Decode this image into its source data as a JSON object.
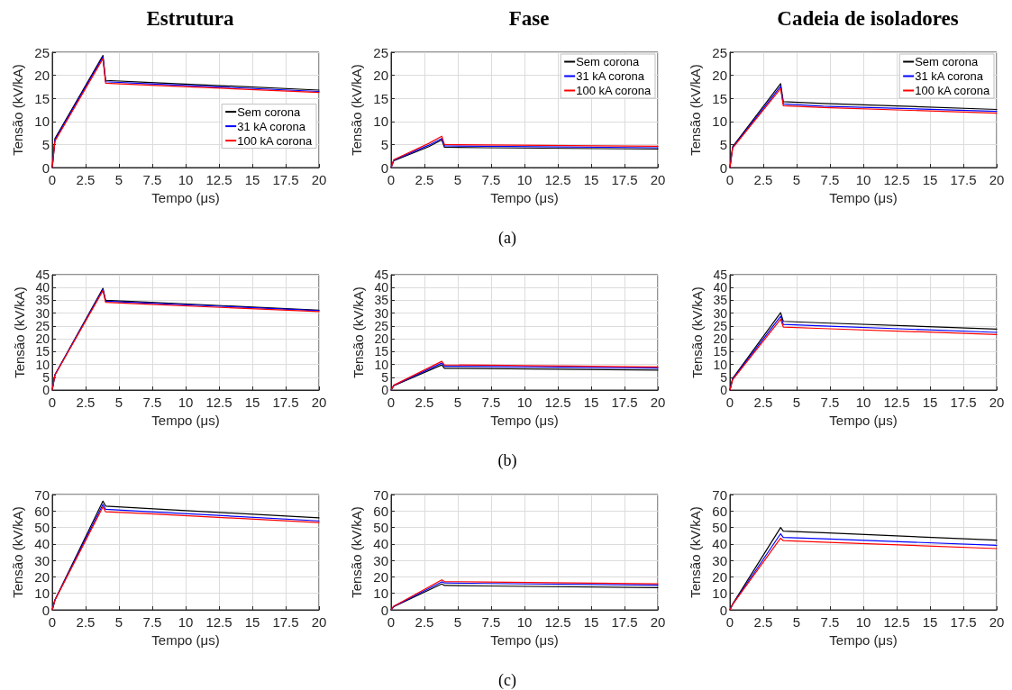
{
  "chart_data": [
    {
      "type": "line",
      "title": "Estrutura",
      "xlabel": "Tempo (μs)",
      "ylabel": "Tensão (kV/kA)",
      "xlim": [
        0,
        20
      ],
      "xticks": [
        0,
        2.5,
        5,
        7.5,
        10,
        12.5,
        15,
        17.5,
        20
      ],
      "ylim": [
        0,
        25
      ],
      "yticks": [
        0,
        5,
        10,
        15,
        20,
        25
      ],
      "grid": true,
      "legend": "right",
      "x": [
        0,
        0.2,
        3.8,
        4,
        7,
        20
      ],
      "series": [
        {
          "name": "Sem corona",
          "color": "#000000",
          "values": [
            0,
            6.3,
            24.3,
            18.9,
            18.5,
            16.8
          ]
        },
        {
          "name": "31 kA corona",
          "color": "#0000ff",
          "values": [
            0,
            6,
            24,
            18.6,
            18.2,
            16.5
          ]
        },
        {
          "name": "100 kA corona",
          "color": "#ff0000",
          "values": [
            0,
            5.7,
            23.6,
            18.3,
            17.9,
            16.3
          ]
        }
      ]
    },
    {
      "type": "line",
      "title": "Fase",
      "xlabel": "Tempo (μs)",
      "ylabel": "Tensão (kV/kA)",
      "annotations": [
        "(a)"
      ],
      "xlim": [
        0,
        20
      ],
      "xticks": [
        0,
        2.5,
        5,
        7.5,
        10,
        12.5,
        15,
        17.5,
        20
      ],
      "ylim": [
        0,
        25
      ],
      "yticks": [
        0,
        5,
        10,
        15,
        20,
        25
      ],
      "grid": true,
      "legend": "top right",
      "x": [
        0,
        0.2,
        2.8,
        3.8,
        4,
        7,
        20
      ],
      "series": [
        {
          "name": "Sem corona",
          "color": "#000000",
          "values": [
            0,
            1.5,
            4.5,
            6,
            4.4,
            4.3,
            4
          ]
        },
        {
          "name": "31 kA corona",
          "color": "#0000ff",
          "values": [
            0,
            1.6,
            4.8,
            6.3,
            4.7,
            4.6,
            4.3
          ]
        },
        {
          "name": "100 kA corona",
          "color": "#ff0000",
          "values": [
            0,
            1.7,
            5.2,
            6.8,
            5,
            4.9,
            4.6
          ]
        }
      ]
    },
    {
      "type": "line",
      "title": "Cadeia de isoladores",
      "xlabel": "Tempo (μs)",
      "ylabel": "Tensão (kV/kA)",
      "xlim": [
        0,
        20
      ],
      "xticks": [
        0,
        2.5,
        5,
        7.5,
        10,
        12.5,
        15,
        17.5,
        20
      ],
      "ylim": [
        0,
        25
      ],
      "yticks": [
        0,
        5,
        10,
        15,
        20,
        25
      ],
      "grid": true,
      "legend": "top right",
      "x": [
        0,
        0.2,
        3.8,
        4,
        7,
        20
      ],
      "series": [
        {
          "name": "Sem corona",
          "color": "#000000",
          "values": [
            0,
            4.5,
            18.2,
            14.3,
            13.9,
            12.6
          ]
        },
        {
          "name": "31 kA corona",
          "color": "#0000ff",
          "values": [
            0,
            4.3,
            17.6,
            13.8,
            13.3,
            12.2
          ]
        },
        {
          "name": "100 kA corona",
          "color": "#ff0000",
          "values": [
            0,
            4.2,
            17.1,
            13.4,
            13,
            11.8
          ]
        }
      ]
    },
    {
      "type": "line",
      "xlabel": "Tempo (μs)",
      "ylabel": "Tensão (kV/kA)",
      "xlim": [
        0,
        20
      ],
      "xticks": [
        0,
        2.5,
        5,
        7.5,
        10,
        12.5,
        15,
        17.5,
        20
      ],
      "ylim": [
        0,
        45
      ],
      "yticks": [
        0,
        5,
        10,
        15,
        20,
        25,
        30,
        35,
        40,
        45
      ],
      "grid": true,
      "x": [
        0,
        0.2,
        3.8,
        4,
        7,
        20
      ],
      "series": [
        {
          "color": "#000000",
          "values": [
            0,
            6,
            39.7,
            35,
            34.3,
            31.2
          ]
        },
        {
          "color": "#0000ff",
          "values": [
            0,
            6,
            39.3,
            34.7,
            34,
            31
          ]
        },
        {
          "color": "#ff0000",
          "values": [
            0,
            5.8,
            38.8,
            34.2,
            33.5,
            30.6
          ]
        }
      ]
    },
    {
      "type": "line",
      "xlabel": "Tempo (μs)",
      "ylabel": "Tensão (kV/kA)",
      "annotations": [
        "(b)"
      ],
      "xlim": [
        0,
        20
      ],
      "xticks": [
        0,
        2.5,
        5,
        7.5,
        10,
        12.5,
        15,
        17.5,
        20
      ],
      "ylim": [
        0,
        45
      ],
      "yticks": [
        0,
        5,
        10,
        15,
        20,
        25,
        30,
        35,
        40,
        45
      ],
      "grid": true,
      "x": [
        0,
        0.2,
        3.8,
        4,
        7,
        20
      ],
      "series": [
        {
          "color": "#000000",
          "values": [
            0,
            1.7,
            9.8,
            8.5,
            8.4,
            7.8
          ]
        },
        {
          "color": "#0000ff",
          "values": [
            0,
            1.8,
            10.5,
            9.3,
            9.2,
            8.6
          ]
        },
        {
          "color": "#ff0000",
          "values": [
            0,
            1.9,
            11.2,
            9.8,
            9.7,
            9
          ]
        }
      ]
    },
    {
      "type": "line",
      "xlabel": "Tempo (μs)",
      "ylabel": "Tensão (kV/kA)",
      "xlim": [
        0,
        20
      ],
      "xticks": [
        0,
        2.5,
        5,
        7.5,
        10,
        12.5,
        15,
        17.5,
        20
      ],
      "ylim": [
        0,
        45
      ],
      "yticks": [
        0,
        5,
        10,
        15,
        20,
        25,
        30,
        35,
        40,
        45
      ],
      "grid": true,
      "x": [
        0,
        0.2,
        3.8,
        4,
        7,
        20
      ],
      "series": [
        {
          "color": "#000000",
          "values": [
            0,
            4.5,
            30.2,
            26.8,
            26.2,
            23.8
          ]
        },
        {
          "color": "#0000ff",
          "values": [
            0,
            4.3,
            28.8,
            25.6,
            25,
            22.5
          ]
        },
        {
          "color": "#ff0000",
          "values": [
            0,
            4,
            27.6,
            24.6,
            24,
            21.7
          ]
        }
      ]
    },
    {
      "type": "line",
      "xlabel": "Tempo (μs)",
      "ylabel": "Tensão (kV/kA)",
      "xlim": [
        0,
        20
      ],
      "xticks": [
        0,
        2.5,
        5,
        7.5,
        10,
        12.5,
        15,
        17.5,
        20
      ],
      "ylim": [
        0,
        70
      ],
      "yticks": [
        0,
        10,
        20,
        30,
        40,
        50,
        60,
        70
      ],
      "grid": true,
      "x": [
        0,
        0.2,
        3.8,
        4,
        7,
        20
      ],
      "series": [
        {
          "color": "#000000",
          "values": [
            0,
            6,
            66,
            63,
            61.6,
            55.8
          ]
        },
        {
          "color": "#0000ff",
          "values": [
            0,
            6,
            64,
            61,
            59.7,
            54
          ]
        },
        {
          "color": "#ff0000",
          "values": [
            0,
            5.8,
            62.5,
            59.5,
            58.4,
            53
          ]
        }
      ]
    },
    {
      "type": "line",
      "xlabel": "Tempo (μs)",
      "ylabel": "Tensão (kV/kA)",
      "annotations": [
        "(c)"
      ],
      "xlim": [
        0,
        20
      ],
      "xticks": [
        0,
        2.5,
        5,
        7.5,
        10,
        12.5,
        15,
        17.5,
        20
      ],
      "ylim": [
        0,
        70
      ],
      "yticks": [
        0,
        10,
        20,
        30,
        40,
        50,
        60,
        70
      ],
      "grid": true,
      "x": [
        0,
        0.2,
        3.8,
        4,
        7,
        20
      ],
      "series": [
        {
          "color": "#000000",
          "values": [
            0,
            2,
            15.7,
            14.8,
            14.5,
            13.5
          ]
        },
        {
          "color": "#0000ff",
          "values": [
            0,
            2.1,
            17,
            16.3,
            16,
            15
          ]
        },
        {
          "color": "#ff0000",
          "values": [
            0,
            2.2,
            18.2,
            17.2,
            16.9,
            15.8
          ]
        }
      ]
    },
    {
      "type": "line",
      "xlabel": "Tempo (μs)",
      "ylabel": "Tensão (kV/kA)",
      "xlim": [
        0,
        20
      ],
      "xticks": [
        0,
        2.5,
        5,
        7.5,
        10,
        12.5,
        15,
        17.5,
        20
      ],
      "ylim": [
        0,
        70
      ],
      "yticks": [
        0,
        10,
        20,
        30,
        40,
        50,
        60,
        70
      ],
      "grid": true,
      "x": [
        0,
        0.2,
        3.8,
        4,
        7,
        20
      ],
      "series": [
        {
          "color": "#000000",
          "values": [
            0,
            3.5,
            50,
            47.8,
            46.8,
            42.3
          ]
        },
        {
          "color": "#0000ff",
          "values": [
            0,
            3.3,
            46.2,
            44,
            43.1,
            39.2
          ]
        },
        {
          "color": "#ff0000",
          "values": [
            0,
            3.2,
            43.5,
            42,
            41.1,
            37.2
          ]
        }
      ]
    }
  ]
}
